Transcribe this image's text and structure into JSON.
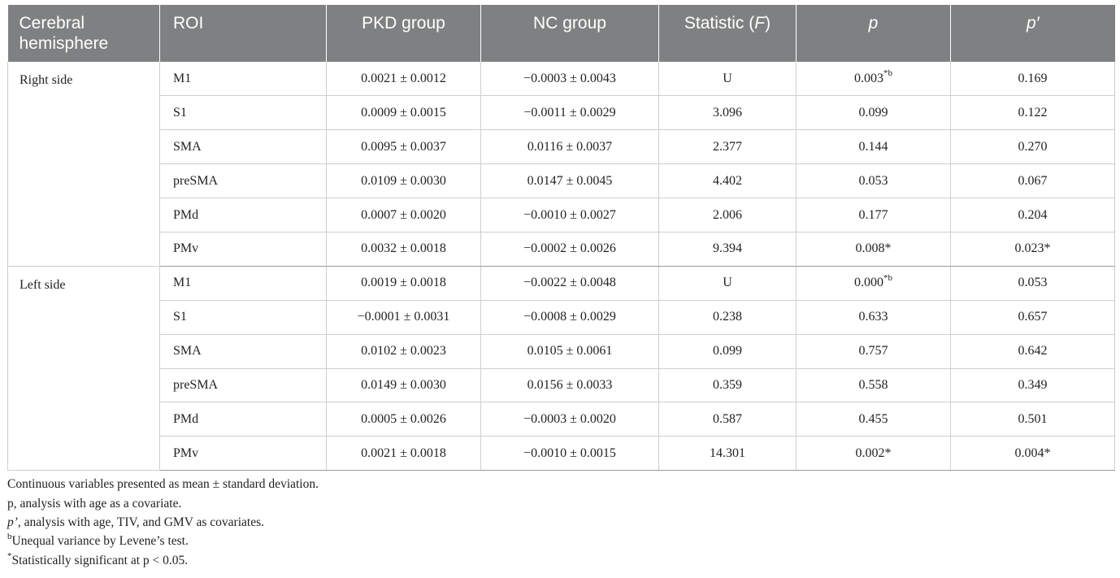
{
  "header": {
    "hemisphere": "Cerebral hemisphere",
    "roi": "ROI",
    "pkd": "PKD group",
    "nc": "NC group",
    "statistic": "Statistic (",
    "statistic_italic": "F",
    "statistic_close": ")",
    "p": "p",
    "p_prime": "p′"
  },
  "groups": [
    {
      "hemisphere": "Right side",
      "rows": [
        {
          "roi": "M1",
          "pkd": "0.0021 ± 0.0012",
          "nc": "−0.0003 ± 0.0043",
          "stat": "U",
          "p": "0.003",
          "p_sup": "*b",
          "pp": "0.169",
          "pp_sup": ""
        },
        {
          "roi": "S1",
          "pkd": "0.0009 ± 0.0015",
          "nc": "−0.0011 ± 0.0029",
          "stat": "3.096",
          "p": "0.099",
          "p_sup": "",
          "pp": "0.122",
          "pp_sup": ""
        },
        {
          "roi": "SMA",
          "pkd": "0.0095 ± 0.0037",
          "nc": "0.0116 ± 0.0037",
          "stat": "2.377",
          "p": "0.144",
          "p_sup": "",
          "pp": "0.270",
          "pp_sup": ""
        },
        {
          "roi": "preSMA",
          "pkd": "0.0109 ± 0.0030",
          "nc": "0.0147 ± 0.0045",
          "stat": "4.402",
          "p": "0.053",
          "p_sup": "",
          "pp": "0.067",
          "pp_sup": ""
        },
        {
          "roi": "PMd",
          "pkd": "0.0007 ± 0.0020",
          "nc": "−0.0010 ± 0.0027",
          "stat": "2.006",
          "p": "0.177",
          "p_sup": "",
          "pp": "0.204",
          "pp_sup": ""
        },
        {
          "roi": "PMv",
          "pkd": "0.0032 ± 0.0018",
          "nc": "−0.0002 ± 0.0026",
          "stat": "9.394",
          "p": "0.008*",
          "p_sup": "",
          "pp": "0.023*",
          "pp_sup": ""
        }
      ]
    },
    {
      "hemisphere": "Left side",
      "rows": [
        {
          "roi": "M1",
          "pkd": "0.0019 ± 0.0018",
          "nc": "−0.0022 ± 0.0048",
          "stat": "U",
          "p": "0.000",
          "p_sup": "*b",
          "pp": "0.053",
          "pp_sup": ""
        },
        {
          "roi": "S1",
          "pkd": "−0.0001 ± 0.0031",
          "nc": "−0.0008 ± 0.0029",
          "stat": "0.238",
          "p": "0.633",
          "p_sup": "",
          "pp": "0.657",
          "pp_sup": ""
        },
        {
          "roi": "SMA",
          "pkd": "0.0102 ± 0.0023",
          "nc": "0.0105 ± 0.0061",
          "stat": "0.099",
          "p": "0.757",
          "p_sup": "",
          "pp": "0.642",
          "pp_sup": ""
        },
        {
          "roi": "preSMA",
          "pkd": "0.0149 ± 0.0030",
          "nc": "0.0156 ± 0.0033",
          "stat": "0.359",
          "p": "0.558",
          "p_sup": "",
          "pp": "0.349",
          "pp_sup": ""
        },
        {
          "roi": "PMd",
          "pkd": "0.0005 ± 0.0026",
          "nc": "−0.0003 ± 0.0020",
          "stat": "0.587",
          "p": "0.455",
          "p_sup": "",
          "pp": "0.501",
          "pp_sup": ""
        },
        {
          "roi": "PMv",
          "pkd": "0.0021 ± 0.0018",
          "nc": "−0.0010 ± 0.0015",
          "stat": "14.301",
          "p": "0.002*",
          "p_sup": "",
          "pp": "0.004*",
          "pp_sup": ""
        }
      ]
    }
  ],
  "notes": {
    "n1": "Continuous variables presented as mean ± standard deviation.",
    "n2": "p, analysis with age as a covariate.",
    "n3_italic": "p’",
    "n3": ", analysis with age, TIV, and GMV as covariates.",
    "n4_sup": "b",
    "n4": "Unequal variance by Levene’s test.",
    "n5_sup": "*",
    "n5": "Statistically significant at p < 0.05."
  },
  "colors": {
    "header_bg": "#7f8081",
    "header_text": "#ffffff",
    "grid": "#cfcfcf"
  }
}
